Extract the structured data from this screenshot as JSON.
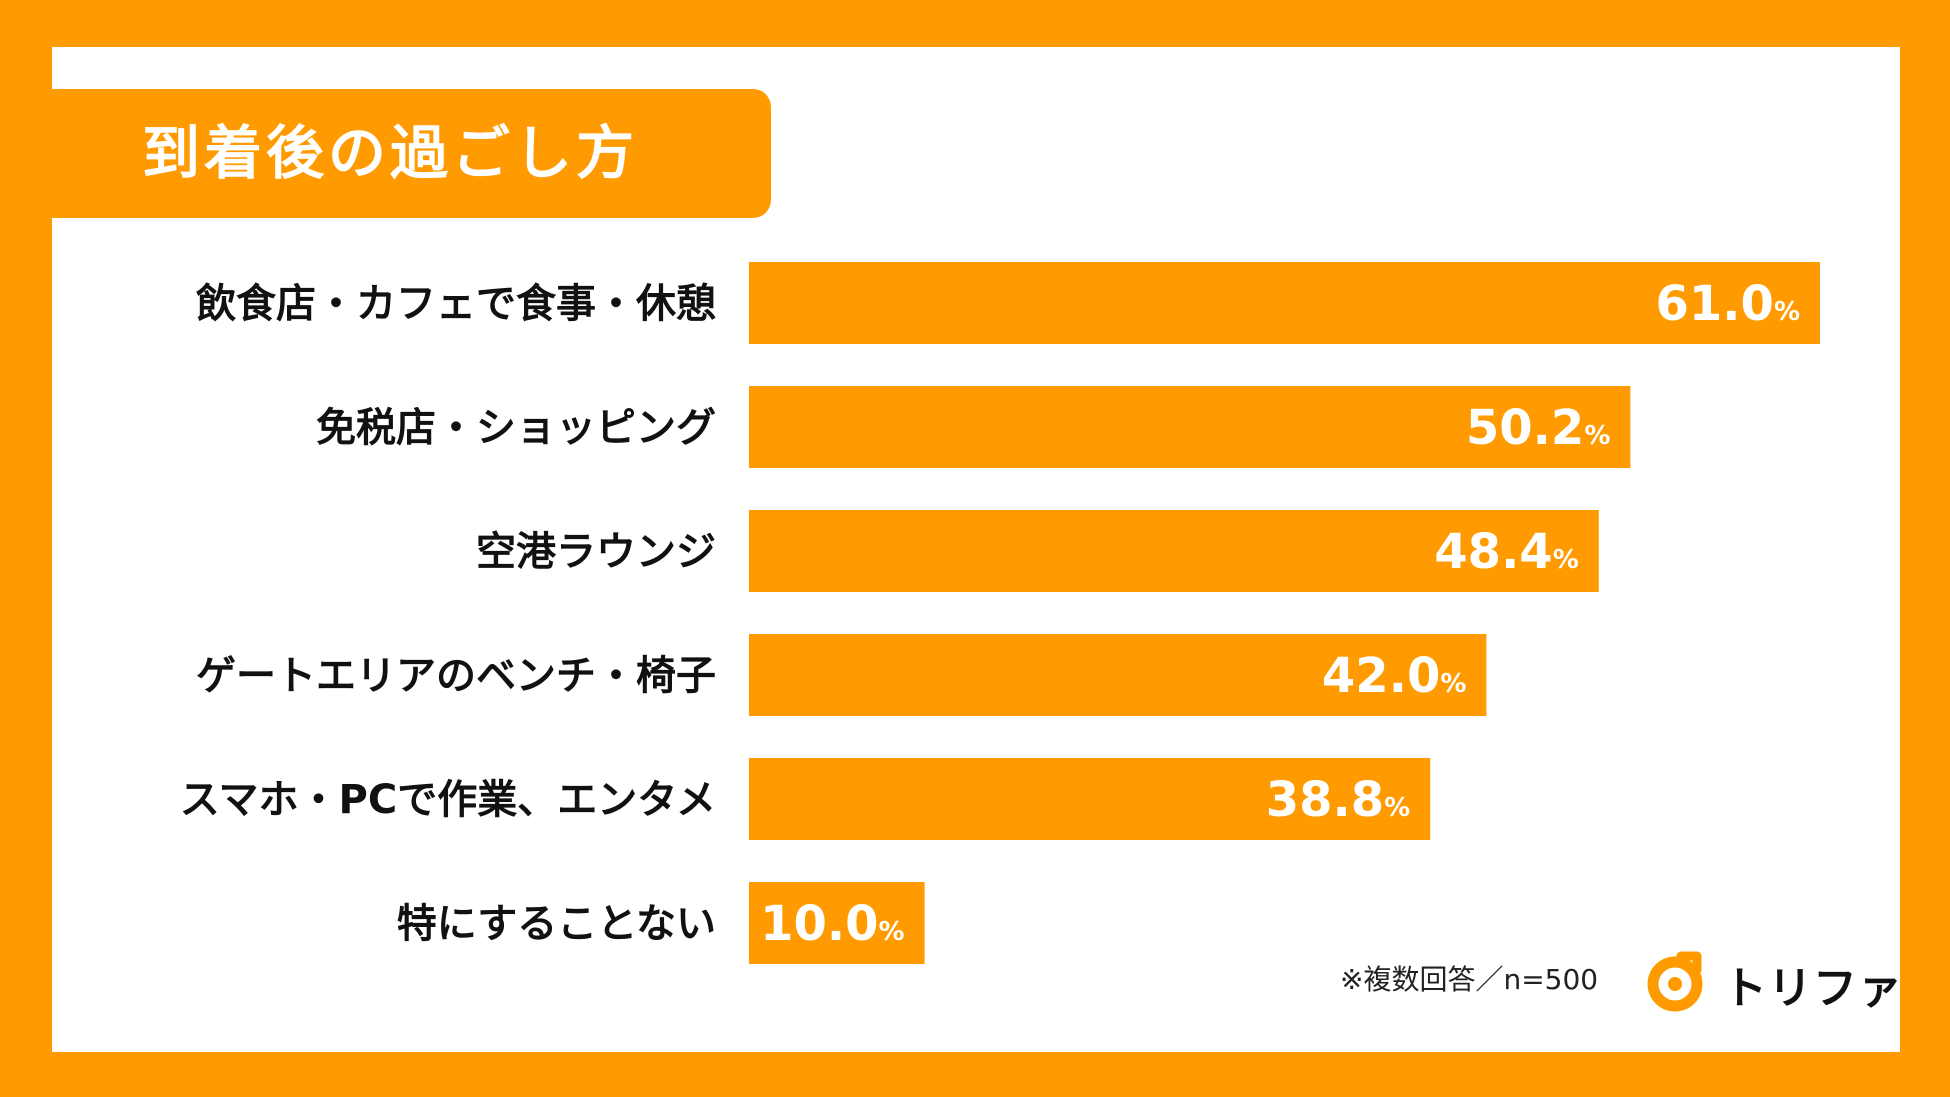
{
  "title": "到着後の過ごし方",
  "note": "※複数回答／n=500",
  "logo_text": "トリファ",
  "colors": {
    "accent": "#FF9A00",
    "panel": "#FFFFFF",
    "text": "#111111"
  },
  "chart_data": {
    "type": "bar",
    "orientation": "horizontal",
    "title": "到着後の過ごし方",
    "unit": "%",
    "xlim": [
      0,
      100
    ],
    "grid": false,
    "categories": [
      "飲食店・カフェで食事・休憩",
      "免税店・ショッピング",
      "空港ラウンジ",
      "ゲートエリアのベンチ・椅子",
      "スマホ・PCで作業、エンタメ",
      "特にすることない"
    ],
    "values": [
      61.0,
      50.2,
      48.4,
      42.0,
      38.8,
      10.0
    ]
  }
}
